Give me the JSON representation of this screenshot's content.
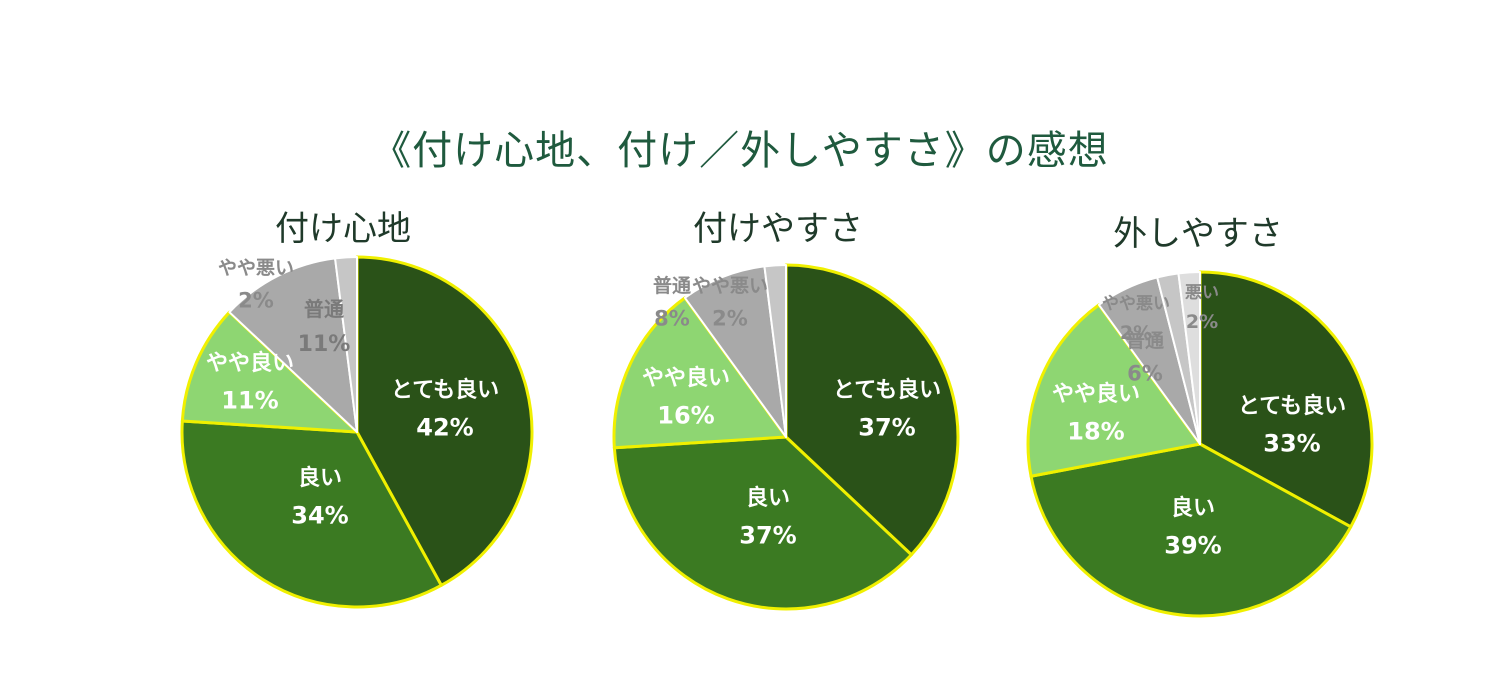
{
  "main_title": "《付け心地、付け／外しやすさ》の感想",
  "colors": {
    "とても良い": "#2a5218",
    "良い": "#3b7a22",
    "やや良い": "#8ed672",
    "普通": "#a9a9a9",
    "やや悪い": "#c6c6c6",
    "悪い": "#dedede",
    "outline": "#f0f000",
    "title": "#1f5a3e"
  },
  "chart_data": [
    {
      "type": "pie",
      "title": "付け心地",
      "slices": [
        {
          "label": "とても良い",
          "value": 42,
          "display": "42%"
        },
        {
          "label": "良い",
          "value": 34,
          "display": "34%"
        },
        {
          "label": "やや良い",
          "value": 11,
          "display": "11%"
        },
        {
          "label": "普通",
          "value": 11,
          "display": "11%"
        },
        {
          "label": "やや悪い",
          "value": 2,
          "display": "2%"
        }
      ]
    },
    {
      "type": "pie",
      "title": "付けやすさ",
      "slices": [
        {
          "label": "とても良い",
          "value": 37,
          "display": "37%"
        },
        {
          "label": "良い",
          "value": 37,
          "display": "37%"
        },
        {
          "label": "やや良い",
          "value": 16,
          "display": "16%"
        },
        {
          "label": "普通",
          "value": 8,
          "display": "8%"
        },
        {
          "label": "やや悪い",
          "value": 2,
          "display": "2%"
        }
      ]
    },
    {
      "type": "pie",
      "title": "外しやすさ",
      "slices": [
        {
          "label": "とても良い",
          "value": 33,
          "display": "33%"
        },
        {
          "label": "良い",
          "value": 39,
          "display": "39%"
        },
        {
          "label": "やや良い",
          "value": 18,
          "display": "18%"
        },
        {
          "label": "普通",
          "value": 6,
          "display": "6%"
        },
        {
          "label": "やや悪い",
          "value": 2,
          "display": "2%"
        },
        {
          "label": "悪い",
          "value": 2,
          "display": "2%"
        }
      ]
    }
  ]
}
